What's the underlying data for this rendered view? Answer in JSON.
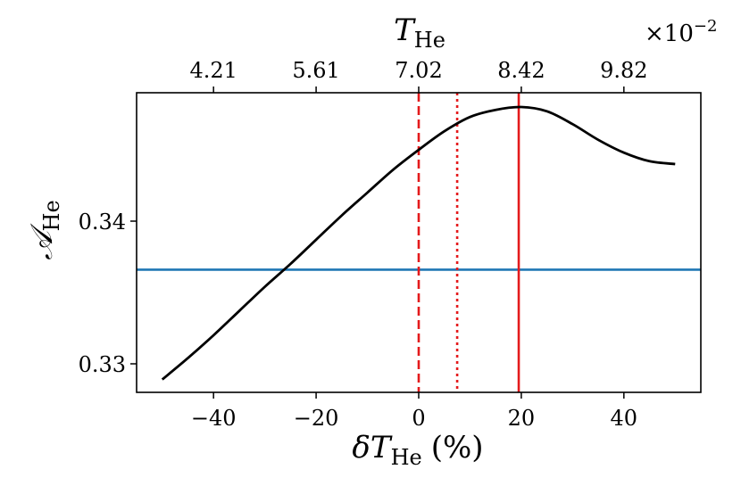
{
  "chart_data": {
    "type": "line",
    "xlabel": "δT_He (%)",
    "xlabel_main": "δT",
    "xlabel_sub": "He",
    "xlabel_unit": "(%)",
    "ylabel": "𝒜_He",
    "ylabel_main": "𝒜",
    "ylabel_sub": "He",
    "top_xlabel": "T_He",
    "top_xlabel_main": "T",
    "top_xlabel_sub": "He",
    "top_multiplier": "×10",
    "top_multiplier_exp": "−2",
    "xlim": [
      -55,
      55
    ],
    "ylim": [
      0.328,
      0.349
    ],
    "x_ticks": [
      -40,
      -20,
      0,
      20,
      40
    ],
    "x_tick_labels": [
      "−40",
      "−20",
      "0",
      "20",
      "40"
    ],
    "y_ticks": [
      0.33,
      0.34
    ],
    "y_tick_labels": [
      "0.33",
      "0.34"
    ],
    "top_ticks_at_bottom_x": [
      -40,
      -20,
      0,
      20,
      40
    ],
    "top_tick_labels": [
      "4.21",
      "5.61",
      "7.02",
      "8.42",
      "9.82"
    ],
    "grid": false,
    "series": [
      {
        "color": "#000000",
        "style": "solid",
        "x": [
          -50,
          -45,
          -40,
          -35,
          -30,
          -25,
          -20,
          -15,
          -10,
          -5,
          0,
          5,
          10,
          15,
          20,
          25,
          30,
          35,
          40,
          45,
          50
        ],
        "y": [
          0.3289,
          0.3304,
          0.332,
          0.3337,
          0.3354,
          0.337,
          0.3387,
          0.3404,
          0.342,
          0.3436,
          0.345,
          0.3463,
          0.3473,
          0.3478,
          0.348,
          0.3477,
          0.3468,
          0.3457,
          0.3448,
          0.3442,
          0.344
        ]
      }
    ],
    "hlines": [
      {
        "y": 0.3366,
        "color": "#1f77b4",
        "style": "solid"
      }
    ],
    "vlines": [
      {
        "x": 0,
        "color": "#e41a1c",
        "style": "dashed"
      },
      {
        "x": 7.5,
        "color": "#e41a1c",
        "style": "dotted"
      },
      {
        "x": 19.5,
        "color": "#e41a1c",
        "style": "solid"
      }
    ]
  }
}
